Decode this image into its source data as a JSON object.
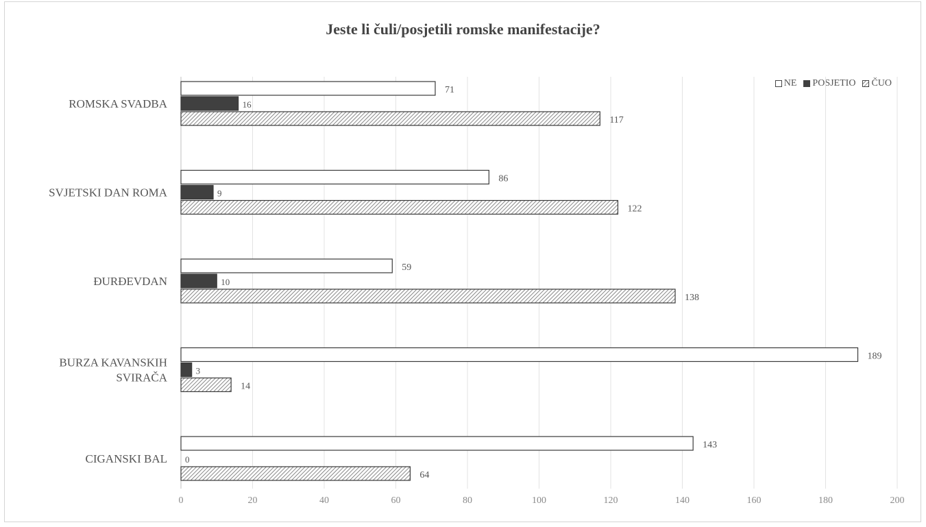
{
  "chart_data": {
    "type": "bar",
    "orientation": "horizontal",
    "title": "Jeste li čuli/posjetili romske manifestacije?",
    "categories": [
      [
        "ROMSKA SVADBA"
      ],
      [
        "SVJETSKI DAN ROMA"
      ],
      [
        "ĐURĐEVDAN"
      ],
      [
        "BURZA KAVANSKIH",
        "SVIRAČA"
      ],
      [
        "CIGANSKI BAL"
      ]
    ],
    "series": [
      {
        "name": "NE",
        "values": [
          71,
          86,
          59,
          189,
          143
        ],
        "style": "empty",
        "color": "#ffffff"
      },
      {
        "name": "POSJETIO",
        "values": [
          16,
          9,
          10,
          3,
          0
        ],
        "style": "solid",
        "color": "#404040"
      },
      {
        "name": "ČUO",
        "values": [
          117,
          122,
          138,
          14,
          64
        ],
        "style": "hatched",
        "color": "#888888"
      }
    ],
    "xlim": [
      0,
      200
    ],
    "xticks": [
      "0",
      "20",
      "40",
      "60",
      "80",
      "100",
      "120",
      "140",
      "160",
      "180",
      "200"
    ],
    "grid": true,
    "legend": "top-right"
  }
}
